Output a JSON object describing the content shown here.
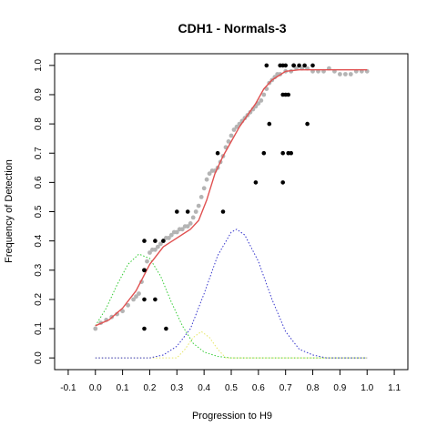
{
  "chart_data": {
    "type": "scatter",
    "title": "CDH1 - Normals-3",
    "xlabel": "Progression to H9",
    "ylabel": "Frequency of Detection",
    "xlim": [
      -0.15,
      1.15
    ],
    "ylim": [
      -0.04,
      1.04
    ],
    "x_ticks": [
      "-0.1",
      "0.0",
      "0.1",
      "0.2",
      "0.3",
      "0.4",
      "0.5",
      "0.6",
      "0.7",
      "0.8",
      "0.9",
      "1.0",
      "1.1"
    ],
    "y_ticks": [
      "0.0",
      "0.1",
      "0.2",
      "0.3",
      "0.4",
      "0.5",
      "0.6",
      "0.7",
      "0.8",
      "0.9",
      "1.0"
    ],
    "grid": false,
    "legend": "none",
    "colors": {
      "fit_curve": "#e05050",
      "smoothed_points": "#b4b4b4",
      "observed_points": "#000000",
      "component_1": "#33cc33",
      "component_2": "#e6e666",
      "component_3": "#3333cc"
    },
    "series": [
      {
        "kind": "points",
        "color_key": "observed_points",
        "x": [
          0.18,
          0.18,
          0.18,
          0.18,
          0.18,
          0.22,
          0.22,
          0.25,
          0.26,
          0.3,
          0.34,
          0.45,
          0.47,
          0.59,
          0.62,
          0.63,
          0.64,
          0.68,
          0.69,
          0.69,
          0.69,
          0.69,
          0.7,
          0.7,
          0.71,
          0.71,
          0.72,
          0.73,
          0.73,
          0.75,
          0.77,
          0.78,
          0.8
        ],
        "y": [
          0.1,
          0.2,
          0.3,
          0.3,
          0.4,
          0.2,
          0.4,
          0.4,
          0.1,
          0.5,
          0.5,
          0.7,
          0.5,
          0.6,
          0.7,
          1.0,
          0.8,
          1.0,
          1.0,
          0.6,
          0.7,
          0.9,
          1.0,
          0.9,
          0.9,
          0.7,
          0.7,
          1.0,
          1.0,
          1.0,
          1.0,
          0.8,
          1.0
        ]
      },
      {
        "kind": "points",
        "color_key": "smoothed_points",
        "x": [
          0.0,
          0.02,
          0.04,
          0.06,
          0.08,
          0.1,
          0.12,
          0.14,
          0.15,
          0.16,
          0.17,
          0.18,
          0.19,
          0.2,
          0.21,
          0.22,
          0.23,
          0.24,
          0.25,
          0.26,
          0.27,
          0.28,
          0.29,
          0.3,
          0.31,
          0.32,
          0.33,
          0.34,
          0.35,
          0.36,
          0.37,
          0.38,
          0.39,
          0.4,
          0.41,
          0.42,
          0.43,
          0.44,
          0.45,
          0.46,
          0.47,
          0.48,
          0.49,
          0.5,
          0.51,
          0.52,
          0.53,
          0.54,
          0.55,
          0.56,
          0.57,
          0.58,
          0.59,
          0.6,
          0.61,
          0.62,
          0.63,
          0.64,
          0.65,
          0.66,
          0.67,
          0.68,
          0.7,
          0.72,
          0.74,
          0.76,
          0.78,
          0.8,
          0.82,
          0.84,
          0.86,
          0.88,
          0.9,
          0.92,
          0.94,
          0.96,
          0.98,
          1.0
        ],
        "y": [
          0.1,
          0.12,
          0.13,
          0.14,
          0.15,
          0.16,
          0.18,
          0.2,
          0.21,
          0.22,
          0.26,
          0.3,
          0.33,
          0.36,
          0.37,
          0.37,
          0.38,
          0.39,
          0.4,
          0.41,
          0.41,
          0.42,
          0.43,
          0.43,
          0.44,
          0.44,
          0.45,
          0.45,
          0.46,
          0.48,
          0.5,
          0.52,
          0.55,
          0.58,
          0.61,
          0.63,
          0.64,
          0.64,
          0.65,
          0.67,
          0.69,
          0.72,
          0.74,
          0.76,
          0.78,
          0.79,
          0.8,
          0.81,
          0.82,
          0.83,
          0.84,
          0.85,
          0.86,
          0.87,
          0.88,
          0.9,
          0.92,
          0.94,
          0.95,
          0.96,
          0.97,
          0.97,
          0.98,
          0.98,
          0.99,
          0.99,
          0.99,
          0.98,
          0.98,
          0.98,
          0.99,
          0.98,
          0.97,
          0.97,
          0.97,
          0.98,
          0.98,
          0.98
        ]
      },
      {
        "kind": "line",
        "color_key": "fit_curve",
        "x": [
          0.0,
          0.05,
          0.1,
          0.15,
          0.2,
          0.25,
          0.3,
          0.35,
          0.38,
          0.41,
          0.44,
          0.47,
          0.5,
          0.53,
          0.56,
          0.59,
          0.62,
          0.65,
          0.7,
          0.75,
          0.8,
          0.85,
          0.9,
          0.95,
          1.0
        ],
        "y": [
          0.11,
          0.13,
          0.17,
          0.23,
          0.32,
          0.38,
          0.41,
          0.44,
          0.47,
          0.54,
          0.63,
          0.69,
          0.74,
          0.79,
          0.83,
          0.87,
          0.92,
          0.95,
          0.98,
          0.985,
          0.985,
          0.985,
          0.985,
          0.985,
          0.985
        ]
      },
      {
        "kind": "dotted",
        "color_key": "component_1",
        "x": [
          0.0,
          0.04,
          0.08,
          0.12,
          0.16,
          0.2,
          0.24,
          0.28,
          0.32,
          0.36,
          0.4,
          0.45,
          0.5,
          0.6,
          0.8,
          1.0
        ],
        "y": [
          0.11,
          0.17,
          0.25,
          0.32,
          0.355,
          0.34,
          0.28,
          0.19,
          0.11,
          0.05,
          0.02,
          0.005,
          0.0,
          0.0,
          0.0,
          0.0
        ]
      },
      {
        "kind": "dotted",
        "color_key": "component_2",
        "x": [
          0.0,
          0.3,
          0.33,
          0.36,
          0.39,
          0.42,
          0.45,
          0.48,
          1.0
        ],
        "y": [
          0.0,
          0.0,
          0.03,
          0.07,
          0.09,
          0.07,
          0.03,
          0.0,
          0.0
        ]
      },
      {
        "kind": "dotted",
        "color_key": "component_3",
        "x": [
          0.0,
          0.2,
          0.25,
          0.3,
          0.35,
          0.4,
          0.45,
          0.5,
          0.52,
          0.55,
          0.6,
          0.65,
          0.7,
          0.75,
          0.8,
          0.85,
          1.0
        ],
        "y": [
          0.0,
          0.0,
          0.01,
          0.04,
          0.1,
          0.22,
          0.35,
          0.43,
          0.44,
          0.42,
          0.33,
          0.2,
          0.09,
          0.03,
          0.01,
          0.0,
          0.0
        ]
      }
    ]
  }
}
